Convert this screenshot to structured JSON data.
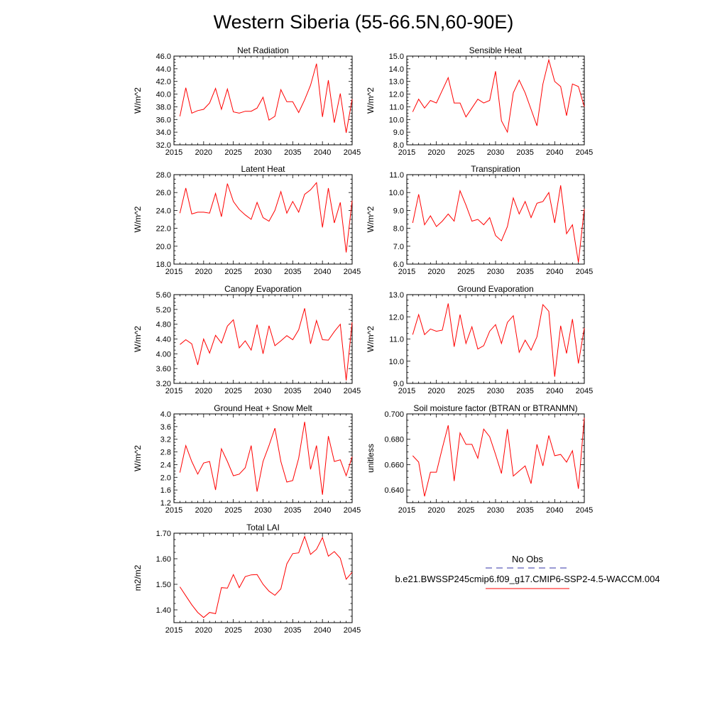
{
  "title": "Western Siberia (55-66.5N,60-90E)",
  "legend": {
    "obs_label": "No Obs",
    "obs_color": "#3333aa",
    "model_label": "b.e21.BWSSP245cmip6.f09_g17.CMIP6-SSP2-4.5-WACCM.004",
    "model_color": "#ff0000"
  },
  "chart_data": [
    {
      "type": "line",
      "title": "Net Radiation",
      "ylabel": "W/m^2",
      "xlim": [
        2015,
        2045
      ],
      "ylim": [
        32.0,
        46.0
      ],
      "xticks": [
        2015,
        2020,
        2025,
        2030,
        2035,
        2040,
        2045
      ],
      "yticks": [
        "32.0",
        "34.0",
        "36.0",
        "38.0",
        "40.0",
        "42.0",
        "44.0",
        "46.0"
      ],
      "series": [
        {
          "color": "#ff0000",
          "x": [
            2016,
            2017,
            2018,
            2019,
            2020,
            2021,
            2022,
            2023,
            2024,
            2025,
            2026,
            2027,
            2028,
            2029,
            2030,
            2031,
            2032,
            2033,
            2034,
            2035,
            2036,
            2037,
            2038,
            2039,
            2040,
            2041,
            2042,
            2043,
            2044,
            2045
          ],
          "values": [
            36.5,
            41.0,
            37.0,
            37.4,
            37.6,
            38.6,
            40.9,
            37.6,
            40.8,
            37.2,
            37.0,
            37.3,
            37.3,
            37.8,
            39.5,
            35.9,
            36.5,
            40.7,
            38.8,
            38.8,
            37.1,
            39.1,
            41.4,
            44.8,
            36.4,
            42.2,
            35.5,
            40.1,
            33.9,
            39.2
          ]
        }
      ]
    },
    {
      "type": "line",
      "title": "Sensible Heat",
      "ylabel": "W/m^2",
      "xlim": [
        2015,
        2045
      ],
      "ylim": [
        8.0,
        15.0
      ],
      "xticks": [
        2015,
        2020,
        2025,
        2030,
        2035,
        2040,
        2045
      ],
      "yticks": [
        "8.0",
        "9.0",
        "10.0",
        "11.0",
        "12.0",
        "13.0",
        "14.0",
        "15.0"
      ],
      "series": [
        {
          "color": "#ff0000",
          "x": [
            2016,
            2017,
            2018,
            2019,
            2020,
            2021,
            2022,
            2023,
            2024,
            2025,
            2026,
            2027,
            2028,
            2029,
            2030,
            2031,
            2032,
            2033,
            2034,
            2035,
            2036,
            2037,
            2038,
            2039,
            2040,
            2041,
            2042,
            2043,
            2044,
            2045
          ],
          "values": [
            10.6,
            11.6,
            10.9,
            11.5,
            11.3,
            12.3,
            13.3,
            11.3,
            11.3,
            10.2,
            10.9,
            11.6,
            11.3,
            11.5,
            13.8,
            9.9,
            9.0,
            12.1,
            13.1,
            12.1,
            10.8,
            9.5,
            12.8,
            14.7,
            13.0,
            12.6,
            10.3,
            12.8,
            12.6,
            11.0
          ]
        }
      ]
    },
    {
      "type": "line",
      "title": "Latent Heat",
      "ylabel": "W/m^2",
      "xlim": [
        2015,
        2045
      ],
      "ylim": [
        18.0,
        28.0
      ],
      "xticks": [
        2015,
        2020,
        2025,
        2030,
        2035,
        2040,
        2045
      ],
      "yticks": [
        "18.0",
        "20.0",
        "22.0",
        "24.0",
        "26.0",
        "28.0"
      ],
      "series": [
        {
          "color": "#ff0000",
          "x": [
            2016,
            2017,
            2018,
            2019,
            2020,
            2021,
            2022,
            2023,
            2024,
            2025,
            2026,
            2027,
            2028,
            2029,
            2030,
            2031,
            2032,
            2033,
            2034,
            2035,
            2036,
            2037,
            2038,
            2039,
            2040,
            2041,
            2042,
            2043,
            2044,
            2045
          ],
          "values": [
            23.7,
            26.5,
            23.6,
            23.8,
            23.8,
            23.7,
            25.9,
            23.3,
            27.0,
            25.0,
            24.1,
            23.5,
            23.0,
            24.9,
            23.2,
            22.8,
            24.0,
            26.1,
            23.7,
            25.0,
            23.8,
            25.8,
            26.3,
            27.1,
            22.1,
            26.5,
            22.6,
            24.9,
            19.3,
            25.1
          ]
        }
      ]
    },
    {
      "type": "line",
      "title": "Transpiration",
      "ylabel": "W/m^2",
      "xlim": [
        2015,
        2045
      ],
      "ylim": [
        6.0,
        11.0
      ],
      "xticks": [
        2015,
        2020,
        2025,
        2030,
        2035,
        2040,
        2045
      ],
      "yticks": [
        "6.0",
        "7.0",
        "8.0",
        "9.0",
        "10.0",
        "11.0"
      ],
      "series": [
        {
          "color": "#ff0000",
          "x": [
            2016,
            2017,
            2018,
            2019,
            2020,
            2021,
            2022,
            2023,
            2024,
            2025,
            2026,
            2027,
            2028,
            2029,
            2030,
            2031,
            2032,
            2033,
            2034,
            2035,
            2036,
            2037,
            2038,
            2039,
            2040,
            2041,
            2042,
            2043,
            2044,
            2045
          ],
          "values": [
            8.3,
            9.9,
            8.2,
            8.7,
            8.1,
            8.4,
            8.8,
            8.4,
            10.1,
            9.3,
            8.4,
            8.5,
            8.2,
            8.6,
            7.6,
            7.3,
            8.1,
            9.7,
            8.8,
            9.5,
            8.6,
            9.4,
            9.5,
            10.0,
            8.3,
            10.4,
            7.7,
            8.2,
            6.1,
            9.1
          ]
        }
      ]
    },
    {
      "type": "line",
      "title": "Canopy Evaporation",
      "ylabel": "W/m^2",
      "xlim": [
        2015,
        2045
      ],
      "ylim": [
        3.2,
        5.6
      ],
      "xticks": [
        2015,
        2020,
        2025,
        2030,
        2035,
        2040,
        2045
      ],
      "yticks": [
        "3.20",
        "3.60",
        "4.00",
        "4.40",
        "4.80",
        "5.20",
        "5.60"
      ],
      "series": [
        {
          "color": "#ff0000",
          "x": [
            2016,
            2017,
            2018,
            2019,
            2020,
            2021,
            2022,
            2023,
            2024,
            2025,
            2026,
            2027,
            2028,
            2029,
            2030,
            2031,
            2032,
            2033,
            2034,
            2035,
            2036,
            2037,
            2038,
            2039,
            2040,
            2041,
            2042,
            2043,
            2044,
            2045
          ],
          "values": [
            4.25,
            4.38,
            4.27,
            3.7,
            4.4,
            4.02,
            4.5,
            4.29,
            4.75,
            4.92,
            4.16,
            4.35,
            4.1,
            4.79,
            4.0,
            4.76,
            4.22,
            4.35,
            4.49,
            4.38,
            4.65,
            5.23,
            4.27,
            4.9,
            4.38,
            4.37,
            4.6,
            4.8,
            3.28,
            4.85
          ]
        }
      ]
    },
    {
      "type": "line",
      "title": "Ground Evaporation",
      "ylabel": "W/m^2",
      "xlim": [
        2015,
        2045
      ],
      "ylim": [
        9.0,
        13.0
      ],
      "xticks": [
        2015,
        2020,
        2025,
        2030,
        2035,
        2040,
        2045
      ],
      "yticks": [
        "9.0",
        "10.0",
        "11.0",
        "12.0",
        "13.0"
      ],
      "series": [
        {
          "color": "#ff0000",
          "x": [
            2016,
            2017,
            2018,
            2019,
            2020,
            2021,
            2022,
            2023,
            2024,
            2025,
            2026,
            2027,
            2028,
            2029,
            2030,
            2031,
            2032,
            2033,
            2034,
            2035,
            2036,
            2037,
            2038,
            2039,
            2040,
            2041,
            2042,
            2043,
            2044,
            2045
          ],
          "values": [
            11.2,
            12.1,
            11.2,
            11.45,
            11.35,
            11.4,
            12.6,
            10.65,
            12.1,
            10.8,
            11.55,
            10.55,
            10.7,
            11.35,
            11.65,
            10.8,
            11.75,
            12.05,
            10.4,
            10.95,
            10.5,
            11.1,
            12.55,
            12.25,
            9.3,
            11.6,
            10.35,
            11.9,
            9.9,
            11.5
          ]
        }
      ]
    },
    {
      "type": "line",
      "title": "Ground Heat + Snow Melt",
      "ylabel": "W/m^2",
      "xlim": [
        2015,
        2045
      ],
      "ylim": [
        1.2,
        4.0
      ],
      "xticks": [
        2015,
        2020,
        2025,
        2030,
        2035,
        2040,
        2045
      ],
      "yticks": [
        "1.2",
        "1.6",
        "2.0",
        "2.4",
        "2.8",
        "3.2",
        "3.6",
        "4.0"
      ],
      "series": [
        {
          "color": "#ff0000",
          "x": [
            2016,
            2017,
            2018,
            2019,
            2020,
            2021,
            2022,
            2023,
            2024,
            2025,
            2026,
            2027,
            2028,
            2029,
            2030,
            2031,
            2032,
            2033,
            2034,
            2035,
            2036,
            2037,
            2038,
            2039,
            2040,
            2041,
            2042,
            2043,
            2044,
            2045
          ],
          "values": [
            2.15,
            3.0,
            2.5,
            2.1,
            2.45,
            2.5,
            1.6,
            2.9,
            2.5,
            2.05,
            2.1,
            2.3,
            3.0,
            1.55,
            2.5,
            3.0,
            3.55,
            2.5,
            1.85,
            1.9,
            2.6,
            3.75,
            2.25,
            3.0,
            1.45,
            3.3,
            2.5,
            2.55,
            2.05,
            2.65
          ]
        }
      ]
    },
    {
      "type": "line",
      "title": "Soil moisture factor (BTRAN or BTRANMN)",
      "ylabel": "unitless",
      "xlim": [
        2015,
        2045
      ],
      "ylim": [
        0.63,
        0.7
      ],
      "xticks": [
        2015,
        2020,
        2025,
        2030,
        2035,
        2040,
        2045
      ],
      "yticks": [
        "0.640",
        "0.660",
        "0.680",
        "0.700"
      ],
      "series": [
        {
          "color": "#ff0000",
          "x": [
            2016,
            2017,
            2018,
            2019,
            2020,
            2021,
            2022,
            2023,
            2024,
            2025,
            2026,
            2027,
            2028,
            2029,
            2030,
            2031,
            2032,
            2033,
            2034,
            2035,
            2036,
            2037,
            2038,
            2039,
            2040,
            2041,
            2042,
            2043,
            2044,
            2045
          ],
          "values": [
            0.667,
            0.662,
            0.635,
            0.654,
            0.654,
            0.673,
            0.691,
            0.647,
            0.685,
            0.676,
            0.676,
            0.665,
            0.688,
            0.682,
            0.668,
            0.653,
            0.688,
            0.651,
            0.655,
            0.659,
            0.645,
            0.676,
            0.659,
            0.683,
            0.667,
            0.668,
            0.662,
            0.671,
            0.641,
            0.697
          ]
        }
      ]
    },
    {
      "type": "line",
      "title": "Total LAI",
      "ylabel": "m2/m2",
      "xlim": [
        2015,
        2045
      ],
      "ylim": [
        1.35,
        1.7
      ],
      "xticks": [
        2015,
        2020,
        2025,
        2030,
        2035,
        2040,
        2045
      ],
      "yticks": [
        "1.40",
        "1.50",
        "1.60",
        "1.70"
      ],
      "series": [
        {
          "color": "#ff0000",
          "x": [
            2016,
            2017,
            2018,
            2019,
            2020,
            2021,
            2022,
            2023,
            2024,
            2025,
            2026,
            2027,
            2028,
            2029,
            2030,
            2031,
            2032,
            2033,
            2034,
            2035,
            2036,
            2037,
            2038,
            2039,
            2040,
            2041,
            2042,
            2043,
            2044,
            2045
          ],
          "values": [
            1.49,
            1.455,
            1.42,
            1.39,
            1.37,
            1.39,
            1.385,
            1.487,
            1.485,
            1.538,
            1.487,
            1.53,
            1.537,
            1.538,
            1.5,
            1.473,
            1.457,
            1.482,
            1.58,
            1.62,
            1.623,
            1.687,
            1.617,
            1.637,
            1.683,
            1.61,
            1.628,
            1.602,
            1.52,
            1.547
          ]
        }
      ]
    }
  ]
}
